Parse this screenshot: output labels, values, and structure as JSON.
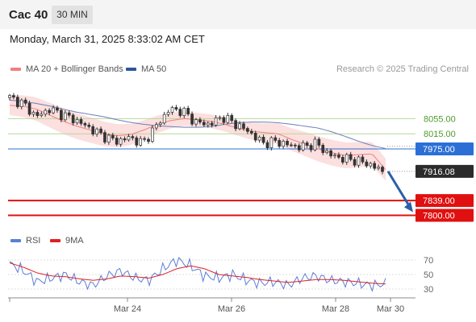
{
  "header": {
    "instrument": "Cac 40",
    "timeframe": "30 MIN"
  },
  "timestamp": "Monday, March 31, 2025 8:33:02 AM CET",
  "legend": {
    "ma20": {
      "label": "MA 20 + Bollinger Bands",
      "color": "#f08080"
    },
    "ma50": {
      "label": "MA 50",
      "color": "#2b5797"
    }
  },
  "credit": "Research © 2025 Trading Central",
  "rsi_legend": {
    "rsi": {
      "label": "RSI",
      "color": "#5b7fd6"
    },
    "ma9": {
      "label": "9MA",
      "color": "#e02020"
    }
  },
  "chart_data": {
    "type": "candlestick",
    "y_range": [
      7782,
      8130
    ],
    "levels": [
      {
        "value": 8055.0,
        "label": "8055.00",
        "kind": "resistance",
        "color": "#b5d99c"
      },
      {
        "value": 8015.0,
        "label": "8015.00",
        "kind": "resistance",
        "color": "#b5d99c"
      },
      {
        "value": 7975.0,
        "label": "7975.00",
        "kind": "pivot",
        "color": "#2b6fd6"
      },
      {
        "value": 7839.0,
        "label": "7839.00",
        "kind": "support",
        "color": "#e01010"
      },
      {
        "value": 7800.0,
        "label": "7800.00",
        "kind": "support",
        "color": "#e01010"
      }
    ],
    "last_price": {
      "value": 7916.08,
      "label": "7916.08"
    },
    "forecast_arrow": {
      "from": 7916,
      "to": 7800
    },
    "x_labels": [
      "Mar 24",
      "Mar 26",
      "Mar 28",
      "Mar 30"
    ],
    "ma50_shape": [
      8104,
      8100,
      8095,
      8088,
      8080,
      8072,
      8066,
      8060,
      8052,
      8045,
      8040,
      8036,
      8034,
      8032,
      8032,
      8034,
      8040,
      8044,
      8046,
      8046,
      8044,
      8040,
      8035,
      8030,
      8020,
      8008,
      7995,
      7984,
      7976
    ],
    "ma20_shape": [
      8090,
      8088,
      8080,
      8064,
      8048,
      8035,
      8025,
      8015,
      8010,
      8013,
      8025,
      8040,
      8050,
      8055,
      8052,
      8048,
      8040,
      8030,
      8022,
      8018,
      8015,
      8000,
      7988,
      7975,
      7965,
      7958,
      7960,
      7962,
      7920
    ],
    "close_shape": [
      8110,
      8095,
      8060,
      8080,
      8065,
      8050,
      8030,
      8010,
      7995,
      8005,
      7990,
      8035,
      8080,
      8075,
      8045,
      8040,
      8060,
      8040,
      8020,
      7990,
      7995,
      7985,
      7980,
      7990,
      7960,
      7950,
      7945,
      7935,
      7916
    ],
    "rsi": {
      "ticks": [
        70,
        50,
        30
      ],
      "y_range": [
        20,
        80
      ],
      "rsi_shape": [
        65,
        55,
        40,
        45,
        50,
        40,
        35,
        48,
        55,
        45,
        42,
        58,
        70,
        62,
        48,
        45,
        50,
        42,
        38,
        40,
        35,
        45,
        48,
        42,
        40,
        38,
        35,
        37
      ],
      "ma9_shape": [
        66,
        60,
        52,
        48,
        47,
        44,
        42,
        44,
        48,
        47,
        45,
        50,
        58,
        62,
        58,
        50,
        48,
        46,
        43,
        41,
        39,
        41,
        43,
        43,
        42,
        40,
        38,
        37
      ]
    }
  }
}
